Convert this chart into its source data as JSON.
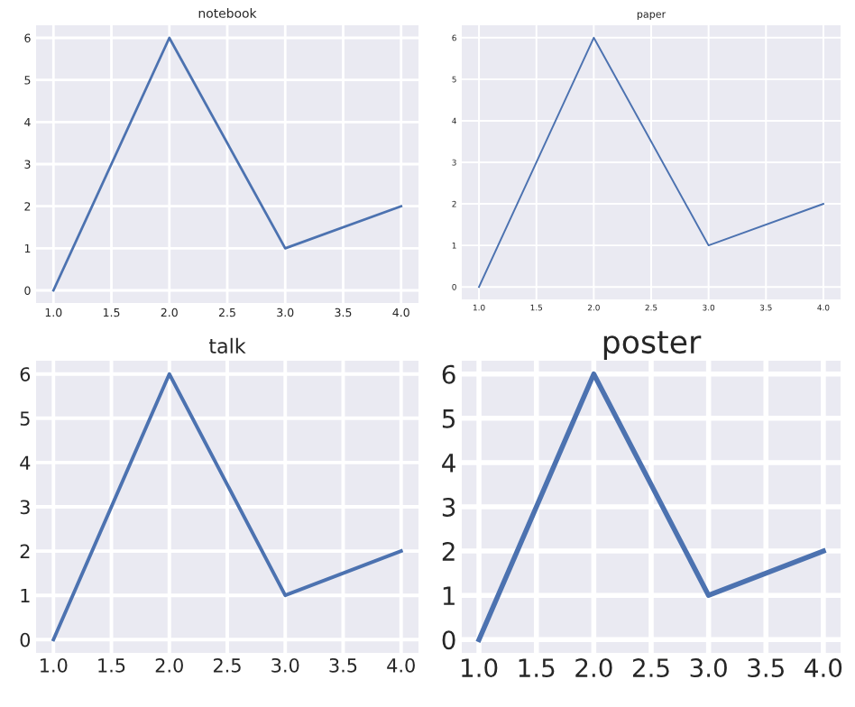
{
  "chart_data": [
    {
      "type": "line",
      "title": "notebook",
      "x": [
        1,
        2,
        3,
        4
      ],
      "values": [
        0,
        6,
        1,
        2
      ],
      "color": "#4c72b0",
      "xlim": [
        0.85,
        4.15
      ],
      "ylim": [
        -0.3,
        6.3
      ],
      "xticks": [
        {
          "value": 1,
          "label": "1.0"
        },
        1.5,
        {
          "value": 2,
          "label": "2.0"
        },
        2.5,
        {
          "value": 3,
          "label": "3.0"
        },
        3.5,
        {
          "value": 4,
          "label": "4.0"
        }
      ],
      "yticks": [
        0,
        1,
        2,
        3,
        4,
        5,
        6
      ],
      "grid": true
    },
    {
      "type": "line",
      "title": "paper",
      "x": [
        1,
        2,
        3,
        4
      ],
      "values": [
        0,
        6,
        1,
        2
      ],
      "color": "#4c72b0",
      "xlim": [
        0.85,
        4.15
      ],
      "ylim": [
        -0.3,
        6.3
      ],
      "xticks": [
        {
          "value": 1,
          "label": "1.0"
        },
        1.5,
        {
          "value": 2,
          "label": "2.0"
        },
        2.5,
        {
          "value": 3,
          "label": "3.0"
        },
        3.5,
        {
          "value": 4,
          "label": "4.0"
        }
      ],
      "yticks": [
        0,
        1,
        2,
        3,
        4,
        5,
        6
      ],
      "grid": true
    },
    {
      "type": "line",
      "title": "talk",
      "x": [
        1,
        2,
        3,
        4
      ],
      "values": [
        0,
        6,
        1,
        2
      ],
      "color": "#4c72b0",
      "xlim": [
        0.85,
        4.15
      ],
      "ylim": [
        -0.3,
        6.3
      ],
      "xticks": [
        {
          "value": 1,
          "label": "1.0"
        },
        1.5,
        {
          "value": 2,
          "label": "2.0"
        },
        2.5,
        {
          "value": 3,
          "label": "3.0"
        },
        3.5,
        {
          "value": 4,
          "label": "4.0"
        }
      ],
      "yticks": [
        0,
        1,
        2,
        3,
        4,
        5,
        6
      ],
      "grid": true
    },
    {
      "type": "line",
      "title": "poster",
      "x": [
        1,
        2,
        3,
        4
      ],
      "values": [
        0,
        6,
        1,
        2
      ],
      "color": "#4c72b0",
      "xlim": [
        0.85,
        4.15
      ],
      "ylim": [
        -0.3,
        6.3
      ],
      "xticks": [
        {
          "value": 1,
          "label": "1.0"
        },
        1.5,
        {
          "value": 2,
          "label": "2.0"
        },
        2.5,
        {
          "value": 3,
          "label": "3.0"
        },
        3.5,
        {
          "value": 4,
          "label": "4.0"
        }
      ],
      "yticks": [
        0,
        1,
        2,
        3,
        4,
        5,
        6
      ],
      "grid": true
    }
  ]
}
